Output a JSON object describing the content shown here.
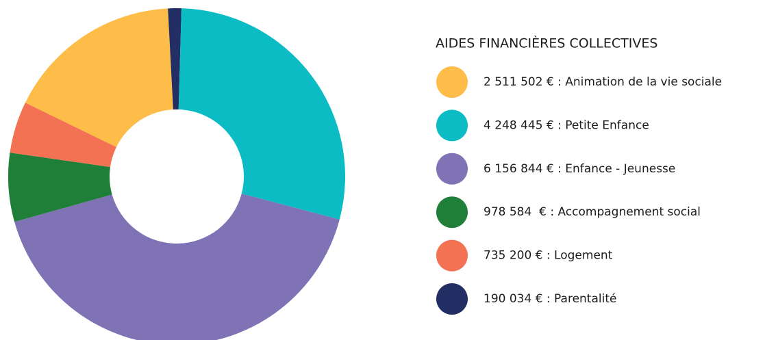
{
  "chart_data": {
    "type": "donut",
    "legend_title": "AIDES FINANCIÈRES COLLECTIVES",
    "values": [
      2511502,
      4248445,
      6156844,
      978584,
      735200,
      190034
    ],
    "value_labels": [
      "2 511 502 € : Animation de la vie sociale",
      "4 248 445 € : Petite Enfance",
      "6 156 844 € : Enfance - Jeunesse",
      "978 584  € : Accompagnement social",
      "735 200 € : Logement",
      "190 034 € : Parentalité"
    ],
    "colors": [
      "#fdbd48",
      "#0bbcc4",
      "#7f72b5",
      "#1f7e38",
      "#f27253",
      "#232f64"
    ],
    "legend": "right"
  }
}
